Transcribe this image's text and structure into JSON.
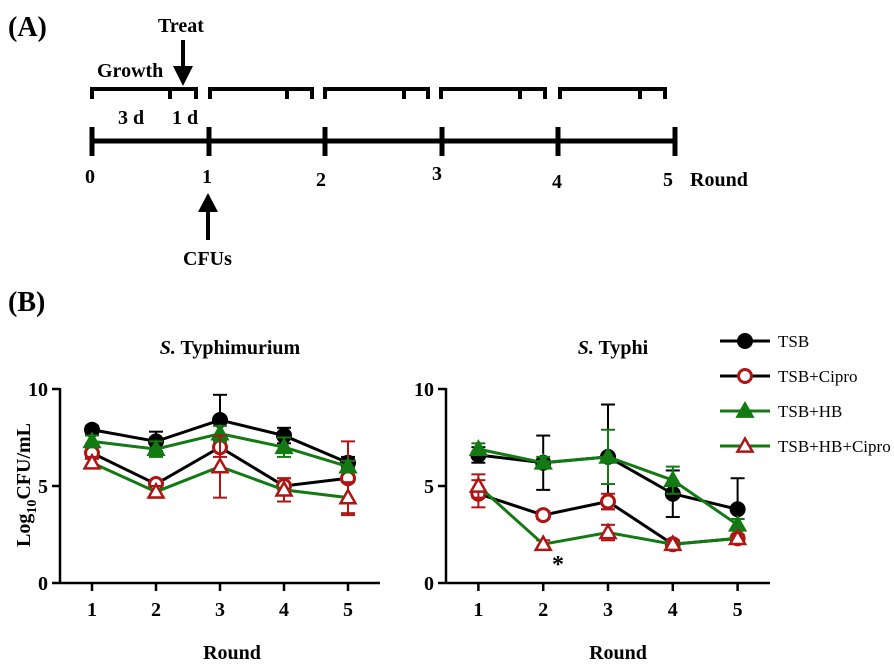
{
  "panel_a": {
    "label": "(A)",
    "growth_label": "Growth",
    "treat_label": "Treat",
    "duration_growth": "3 d",
    "duration_treat": "1 d",
    "cfus_label": "CFUs",
    "round_label": "Round",
    "timeline_ticks": [
      "0",
      "1",
      "2",
      "3",
      "4",
      "5"
    ]
  },
  "panel_b": {
    "label": "(B)",
    "ylabel_main": "Log",
    "ylabel_sub": "10",
    "ylabel_tail": "CFU/mL",
    "significance_marker": "*"
  },
  "legend": {
    "entries": [
      {
        "name": "TSB",
        "color": "#000000",
        "marker": "circle",
        "filled": true
      },
      {
        "name": "TSB+Cipro",
        "color": "#b01515",
        "marker": "circle",
        "filled": false
      },
      {
        "name": "TSB+HB",
        "color": "#137a13",
        "marker": "triangle",
        "filled": true
      },
      {
        "name": "TSB+HB+Cipro",
        "color": "#b01515",
        "marker": "triangle",
        "filled": false
      }
    ]
  },
  "chart_data": [
    {
      "type": "line",
      "title_italic": "S.",
      "title_rest": " Typhimurium",
      "xlabel": "Round",
      "ylabel": "Log10CFU/mL",
      "x": [
        1,
        2,
        3,
        4,
        5
      ],
      "xlim": [
        0.5,
        5.5
      ],
      "ylim": [
        0,
        10
      ],
      "yticks": [
        0,
        5,
        10
      ],
      "series": [
        {
          "name": "TSB",
          "color": "#000000",
          "line_color": "#000000",
          "marker": "circle",
          "filled": true,
          "values": [
            7.9,
            7.3,
            8.4,
            7.6,
            6.2
          ],
          "errors": [
            0.2,
            0.5,
            1.3,
            0.4,
            0.3
          ]
        },
        {
          "name": "TSB+Cipro",
          "color": "#b01515",
          "line_color": "#000000",
          "marker": "circle",
          "filled": false,
          "values": [
            6.7,
            5.1,
            7.0,
            5.0,
            5.4
          ],
          "errors": [
            0.3,
            0.2,
            0.5,
            0.4,
            1.9
          ]
        },
        {
          "name": "TSB+HB",
          "color": "#137a13",
          "line_color": "#137a13",
          "marker": "triangle",
          "filled": true,
          "values": [
            7.3,
            6.9,
            7.7,
            7.0,
            6.0
          ],
          "errors": [
            0.3,
            0.4,
            0.4,
            0.5,
            0.3
          ]
        },
        {
          "name": "TSB+HB+Cipro",
          "color": "#b01515",
          "line_color": "#137a13",
          "marker": "triangle",
          "filled": false,
          "values": [
            6.2,
            4.7,
            6.0,
            4.8,
            4.4
          ],
          "errors": [
            0.3,
            0.3,
            1.6,
            0.6,
            0.8
          ]
        }
      ]
    },
    {
      "type": "line",
      "title_italic": "S.",
      "title_rest": " Typhi",
      "xlabel": "Round",
      "ylabel": "Log10CFU/mL",
      "x": [
        1,
        2,
        3,
        4,
        5
      ],
      "xlim": [
        0.5,
        5.5
      ],
      "ylim": [
        0,
        10
      ],
      "yticks": [
        0,
        5,
        10
      ],
      "series": [
        {
          "name": "TSB",
          "color": "#000000",
          "line_color": "#000000",
          "marker": "circle",
          "filled": true,
          "values": [
            6.6,
            6.2,
            6.5,
            4.6,
            3.8
          ],
          "errors": [
            0.4,
            1.4,
            2.7,
            1.2,
            1.6
          ]
        },
        {
          "name": "TSB+Cipro",
          "color": "#b01515",
          "line_color": "#000000",
          "marker": "circle",
          "filled": false,
          "values": [
            4.6,
            3.5,
            4.2,
            2.0,
            2.3
          ],
          "errors": [
            0.7,
            0.2,
            0.4,
            0.2,
            0.2
          ]
        },
        {
          "name": "TSB+HB",
          "color": "#137a13",
          "line_color": "#137a13",
          "marker": "triangle",
          "filled": true,
          "values": [
            6.9,
            6.2,
            6.5,
            5.3,
            3.0
          ],
          "errors": [
            0.3,
            0.3,
            1.4,
            0.7,
            0.3
          ]
        },
        {
          "name": "TSB+HB+Cipro",
          "color": "#b01515",
          "line_color": "#137a13",
          "marker": "triangle",
          "filled": false,
          "values": [
            5.0,
            2.0,
            2.6,
            2.0,
            2.3
          ],
          "errors": [
            0.6,
            0.2,
            0.4,
            0.2,
            0.2
          ]
        }
      ]
    }
  ]
}
